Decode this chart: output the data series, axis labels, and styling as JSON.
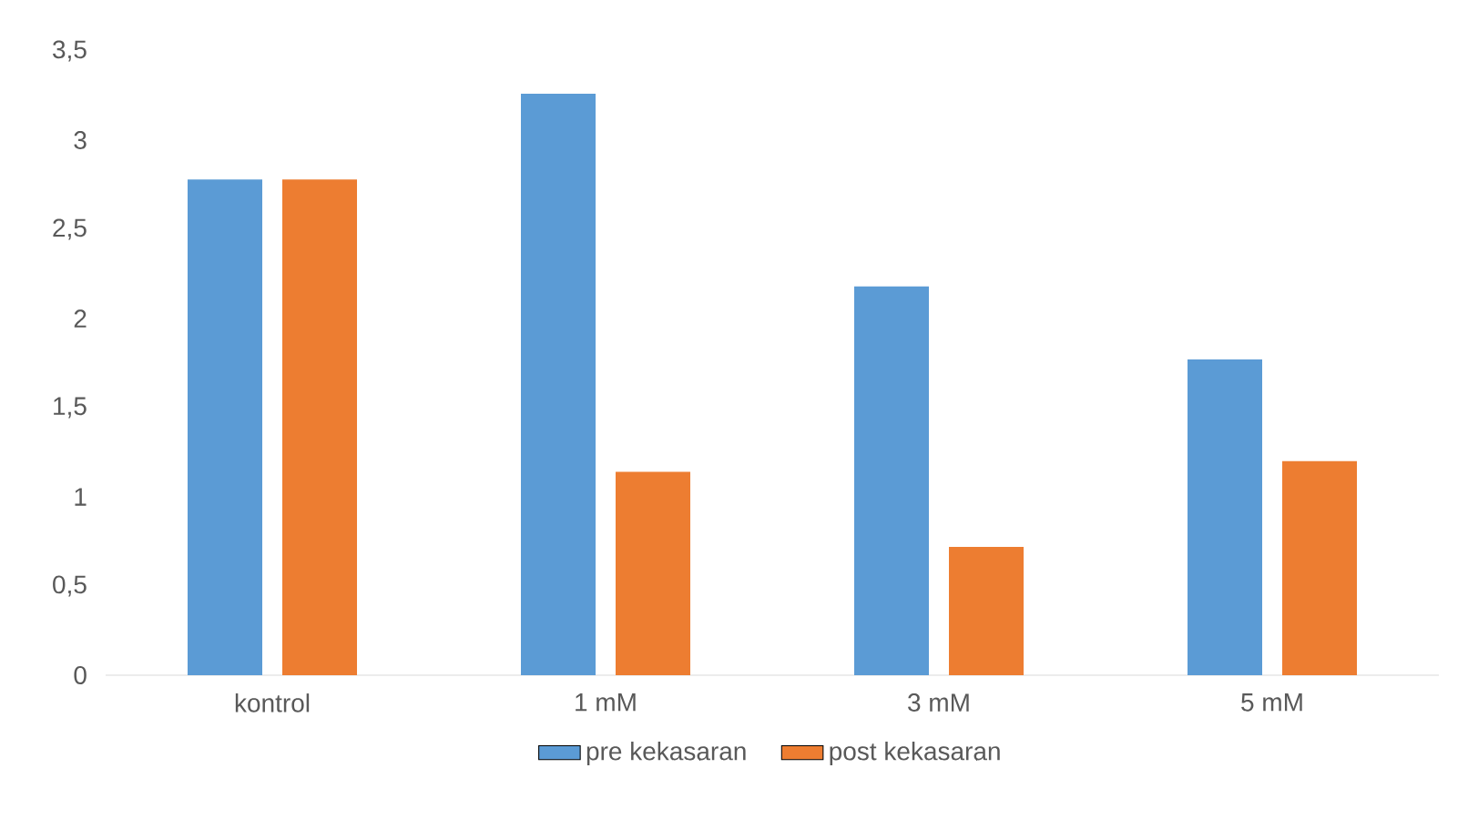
{
  "chart_data": {
    "type": "bar",
    "categories": [
      "kontrol",
      "1 mM",
      "3 mM",
      "5 mM"
    ],
    "series": [
      {
        "name": "pre kekasaran",
        "color": "#5b9bd5",
        "values": [
          2.78,
          3.26,
          2.18,
          1.77
        ]
      },
      {
        "name": "post kekasaran",
        "color": "#ed7d31",
        "values": [
          2.78,
          1.14,
          0.72,
          1.2
        ]
      }
    ],
    "ylim": [
      0,
      3.5
    ],
    "yticks": [
      0,
      {
        "value": 0.5,
        "label": "0,5"
      },
      1,
      {
        "value": 1.5,
        "label": "1,5"
      },
      2,
      {
        "value": 2.5,
        "label": "2,5"
      },
      3,
      {
        "value": 3.5,
        "label": "3,5"
      }
    ],
    "legend": "bottom"
  }
}
